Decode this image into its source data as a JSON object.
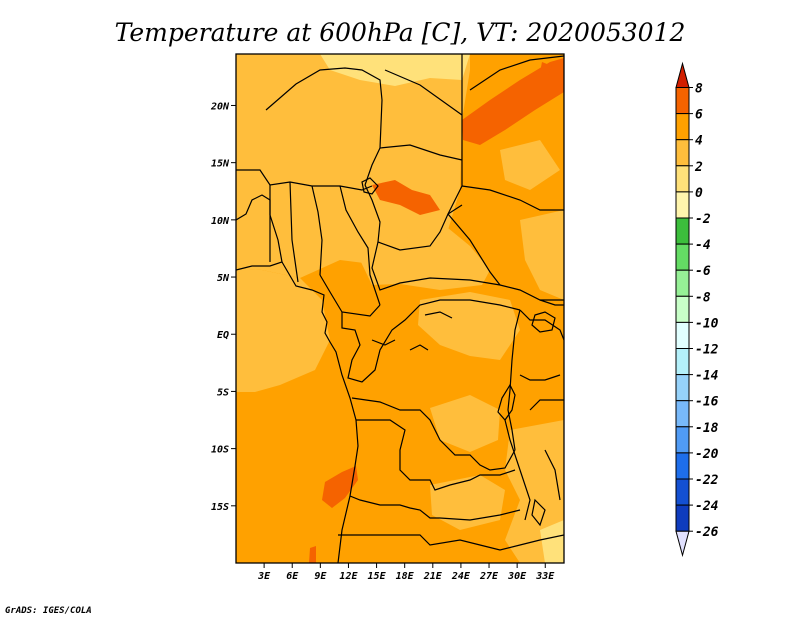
{
  "title": "Temperature at 600hPa [C], VT: 2020053012",
  "credit": "GrADS: IGES/COLA",
  "map": {
    "lon_range": [
      0,
      35
    ],
    "lat_range": [
      -20,
      24.5
    ],
    "lon_ticks": [
      {
        "value": 3,
        "label": "3E"
      },
      {
        "value": 6,
        "label": "6E"
      },
      {
        "value": 9,
        "label": "9E"
      },
      {
        "value": 12,
        "label": "12E"
      },
      {
        "value": 15,
        "label": "15E"
      },
      {
        "value": 18,
        "label": "18E"
      },
      {
        "value": 21,
        "label": "21E"
      },
      {
        "value": 24,
        "label": "24E"
      },
      {
        "value": 27,
        "label": "27E"
      },
      {
        "value": 30,
        "label": "30E"
      },
      {
        "value": 33,
        "label": "33E"
      }
    ],
    "lat_ticks": [
      {
        "value": 20,
        "label": "20N"
      },
      {
        "value": 15,
        "label": "15N"
      },
      {
        "value": 10,
        "label": "10N"
      },
      {
        "value": 5,
        "label": "5N"
      },
      {
        "value": 0,
        "label": "EQ"
      },
      {
        "value": -5,
        "label": "5S"
      },
      {
        "value": -10,
        "label": "10S"
      },
      {
        "value": -15,
        "label": "15S"
      }
    ],
    "base_color": "#ffa100"
  },
  "colorbar": {
    "levels": [
      "8",
      "6",
      "4",
      "2",
      "0",
      "-2",
      "-4",
      "-6",
      "-8",
      "-10",
      "-12",
      "-14",
      "-16",
      "-18",
      "-20",
      "-22",
      "-24",
      "-26"
    ],
    "colors": [
      "#e63000",
      "#f56300",
      "#ffa100",
      "#ffbe3c",
      "#ffe17a",
      "#fff5ad",
      "#3cbe3c",
      "#64dc64",
      "#96f096",
      "#c8ffc8",
      "#e1ffff",
      "#b4f0fa",
      "#96d2fa",
      "#78b9fa",
      "#509bf5",
      "#1e6eeb",
      "#1450d2",
      "#0f3cbe",
      "#0a0a6e"
    ],
    "top_color": "#d11e00",
    "bottom_color": "#e1e1ff"
  }
}
